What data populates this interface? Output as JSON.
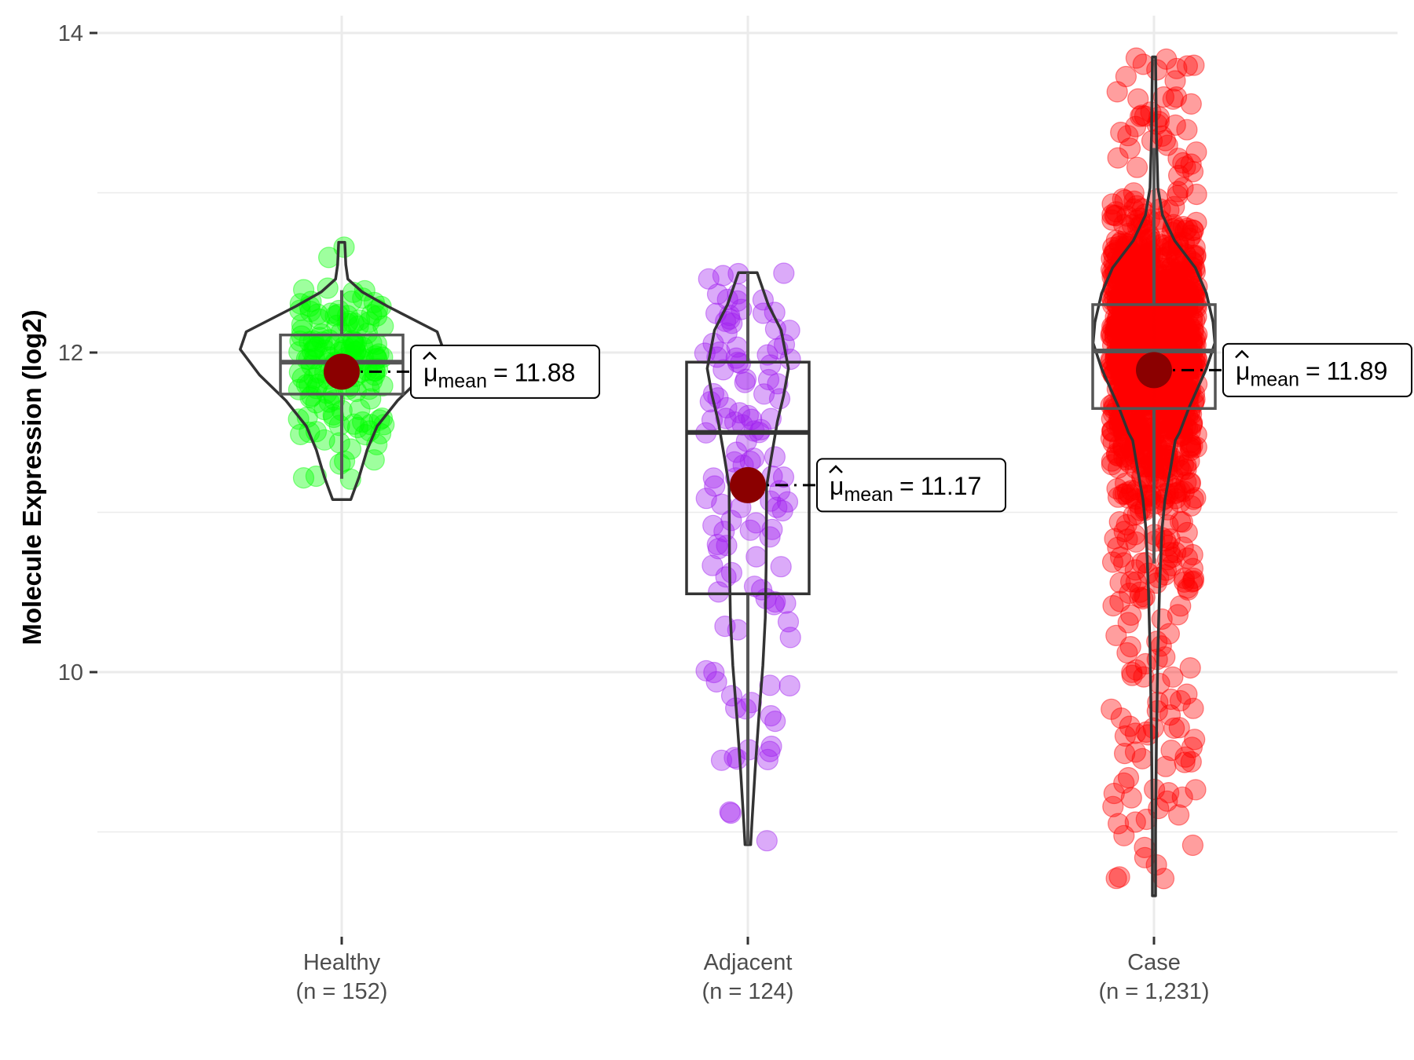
{
  "chart_data": {
    "type": "violin-box-scatter",
    "title": "",
    "xlabel": "",
    "ylabel": "Molecule Expression (log2)",
    "ylim": [
      8.33,
      14.1
    ],
    "y_ticks": [
      {
        "value": 10,
        "label": "10"
      },
      {
        "value": 12,
        "label": "12"
      },
      {
        "value": 14,
        "label": "14"
      }
    ],
    "y_minor_gridlines": [
      9,
      11,
      13
    ],
    "grid": true,
    "legend": "none",
    "mean_label_prefix": "μ",
    "mean_label_subscript": "mean",
    "mean_label_equals": "=",
    "mean_color": "#8B0000",
    "groups": [
      {
        "name": "Healthy",
        "n_label": "(n = 152)",
        "n": 152,
        "color": "#00FF00",
        "mean": 11.88,
        "mean_label": "11.88",
        "box": {
          "q1": 11.74,
          "median": 11.94,
          "q3": 12.11,
          "whisker_low": 11.21,
          "whisker_high": 12.39
        },
        "violin": [
          [
            11.08,
            0.09
          ],
          [
            11.22,
            0.17
          ],
          [
            11.39,
            0.25
          ],
          [
            11.54,
            0.35
          ],
          [
            11.7,
            0.55
          ],
          [
            11.86,
            0.81
          ],
          [
            12.02,
            1.0
          ],
          [
            12.13,
            0.94
          ],
          [
            12.29,
            0.45
          ],
          [
            12.38,
            0.2
          ],
          [
            12.46,
            0.06
          ],
          [
            12.55,
            0.04
          ],
          [
            12.69,
            0.03
          ]
        ],
        "violin_max_halfwidth_units": 0.25
      },
      {
        "name": "Adjacent",
        "n_label": "(n = 124)",
        "n": 124,
        "color": "#A020F0",
        "mean": 11.17,
        "mean_label": "11.17",
        "box": {
          "q1": 10.49,
          "median": 11.5,
          "q3": 11.94,
          "whisker_low": 8.92,
          "whisker_high": 12.5
        },
        "violin": [
          [
            8.92,
            0.07
          ],
          [
            9.06,
            0.1
          ],
          [
            9.39,
            0.18
          ],
          [
            9.72,
            0.27
          ],
          [
            10.04,
            0.37
          ],
          [
            10.34,
            0.43
          ],
          [
            10.67,
            0.45
          ],
          [
            11.16,
            0.46
          ],
          [
            11.32,
            0.56
          ],
          [
            11.57,
            0.73
          ],
          [
            11.73,
            0.88
          ],
          [
            11.9,
            1.0
          ],
          [
            12.14,
            0.82
          ],
          [
            12.3,
            0.5
          ],
          [
            12.5,
            0.23
          ]
        ],
        "violin_max_halfwidth_units": 0.1
      },
      {
        "name": "Case",
        "n_label": "(n = 1,231)",
        "n": 1231,
        "color": "#FF0000",
        "mean": 11.89,
        "mean_label": "11.89",
        "box": {
          "q1": 11.65,
          "median": 12.01,
          "q3": 12.3,
          "whisker_low": 10.68,
          "whisker_high": 13.28
        },
        "violin": [
          [
            8.6,
            0.025
          ],
          [
            9.01,
            0.025
          ],
          [
            9.57,
            0.04
          ],
          [
            10.14,
            0.065
          ],
          [
            10.51,
            0.09
          ],
          [
            10.89,
            0.13
          ],
          [
            11.08,
            0.18
          ],
          [
            11.27,
            0.27
          ],
          [
            11.45,
            0.35
          ],
          [
            11.5,
            0.42
          ],
          [
            11.65,
            0.57
          ],
          [
            11.9,
            0.86
          ],
          [
            12.06,
            1.0
          ],
          [
            12.19,
            0.97
          ],
          [
            12.37,
            0.86
          ],
          [
            12.53,
            0.68
          ],
          [
            12.7,
            0.34
          ],
          [
            12.86,
            0.14
          ],
          [
            13.03,
            0.065
          ],
          [
            13.36,
            0.04
          ],
          [
            13.85,
            0.025
          ]
        ],
        "violin_max_halfwidth_units": 0.15
      }
    ]
  }
}
